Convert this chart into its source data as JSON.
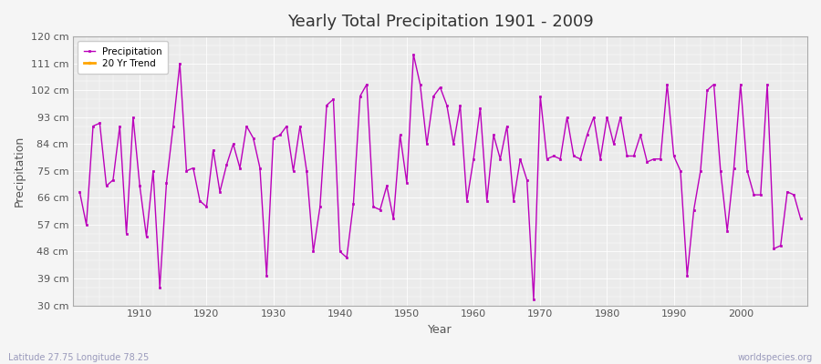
{
  "title": "Yearly Total Precipitation 1901 - 2009",
  "xlabel": "Year",
  "ylabel": "Precipitation",
  "subtitle_left": "Latitude 27.75 Longitude 78.25",
  "subtitle_right": "worldspecies.org",
  "ylim": [
    30,
    120
  ],
  "yticks": [
    30,
    39,
    48,
    57,
    66,
    75,
    84,
    93,
    102,
    111,
    120
  ],
  "ytick_labels": [
    "30 cm",
    "39 cm",
    "48 cm",
    "57 cm",
    "66 cm",
    "75 cm",
    "84 cm",
    "93 cm",
    "102 cm",
    "111 cm",
    "120 cm"
  ],
  "background_color": "#f5f5f5",
  "plot_bg_color": "#ebebeb",
  "line_color": "#bb00bb",
  "trend_color": "#ffa500",
  "line_width": 1.0,
  "marker": "s",
  "marker_size": 2,
  "years": [
    1901,
    1902,
    1903,
    1904,
    1905,
    1906,
    1907,
    1908,
    1909,
    1910,
    1911,
    1912,
    1913,
    1914,
    1915,
    1916,
    1917,
    1918,
    1919,
    1920,
    1921,
    1922,
    1923,
    1924,
    1925,
    1926,
    1927,
    1928,
    1929,
    1930,
    1931,
    1932,
    1933,
    1934,
    1935,
    1936,
    1937,
    1938,
    1939,
    1940,
    1941,
    1942,
    1943,
    1944,
    1945,
    1946,
    1947,
    1948,
    1949,
    1950,
    1951,
    1952,
    1953,
    1954,
    1955,
    1956,
    1957,
    1958,
    1959,
    1960,
    1961,
    1962,
    1963,
    1964,
    1965,
    1966,
    1967,
    1968,
    1969,
    1970,
    1971,
    1972,
    1973,
    1974,
    1975,
    1976,
    1977,
    1978,
    1979,
    1980,
    1981,
    1982,
    1983,
    1984,
    1985,
    1986,
    1987,
    1988,
    1989,
    1990,
    1991,
    1992,
    1993,
    1994,
    1995,
    1996,
    1997,
    1998,
    1999,
    2000,
    2001,
    2002,
    2003,
    2004,
    2005,
    2006,
    2007,
    2008,
    2009
  ],
  "precipitation": [
    68,
    57,
    90,
    91,
    70,
    72,
    90,
    54,
    93,
    70,
    53,
    75,
    36,
    71,
    90,
    111,
    75,
    76,
    65,
    63,
    82,
    68,
    77,
    84,
    76,
    90,
    86,
    76,
    40,
    86,
    87,
    90,
    75,
    90,
    75,
    48,
    63,
    97,
    99,
    48,
    46,
    64,
    100,
    104,
    63,
    62,
    70,
    59,
    87,
    71,
    114,
    104,
    84,
    100,
    103,
    97,
    84,
    97,
    65,
    79,
    96,
    65,
    87,
    79,
    90,
    65,
    79,
    72,
    32,
    100,
    79,
    80,
    79,
    93,
    80,
    79,
    87,
    93,
    79,
    93,
    84,
    93,
    80,
    80,
    87,
    78,
    79,
    79,
    104,
    80,
    75,
    40,
    62,
    75,
    102,
    104,
    75,
    55,
    76,
    104,
    75,
    67,
    67,
    104,
    49,
    50,
    68,
    67,
    59
  ]
}
